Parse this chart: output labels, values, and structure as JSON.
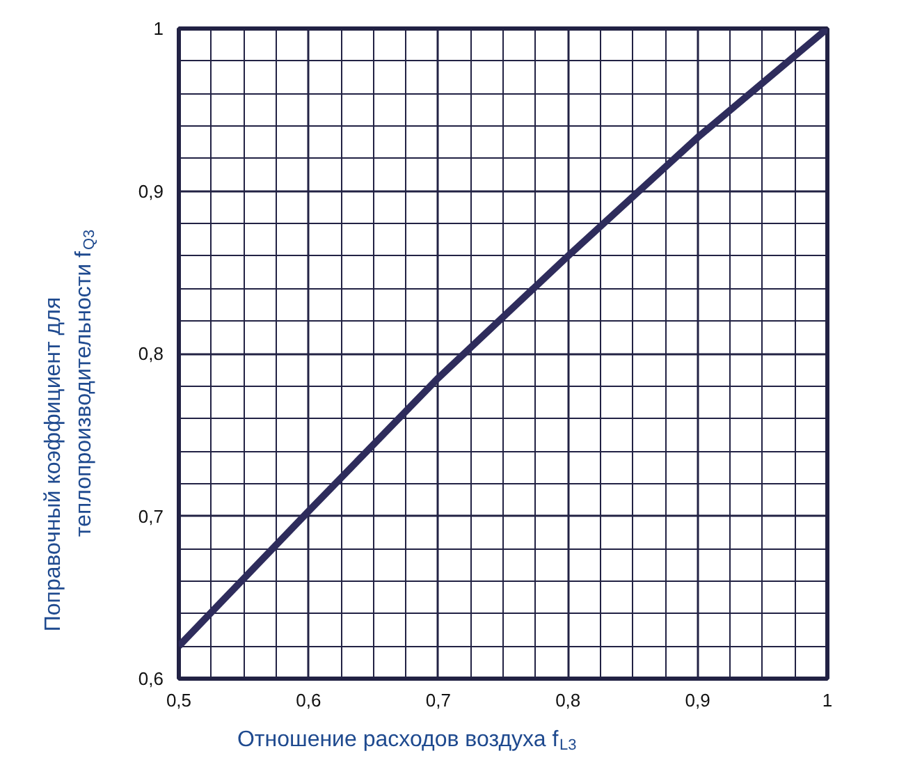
{
  "chart_data": {
    "type": "line",
    "xlabel": "Отношение расходов воздуха f$_{L3}$",
    "ylabel": "Поправочный коэффициент для\nтеплопроизводительности f$_{Q3}$",
    "x": [
      0.5,
      0.6,
      0.7,
      0.8,
      0.9,
      1.0
    ],
    "series": [
      {
        "color": "#2e2c5c",
        "values": [
          0.62,
          0.703,
          0.785,
          0.86,
          0.933,
          1.0
        ]
      }
    ],
    "xlim": [
      0.5,
      1.0
    ],
    "ylim": [
      0.6,
      1.0
    ],
    "xticks": [
      {
        "value": 0.5,
        "label": "0,5"
      },
      {
        "value": 0.6,
        "label": "0,6"
      },
      {
        "value": 0.7,
        "label": "0,7"
      },
      {
        "value": 0.8,
        "label": "0,8"
      },
      {
        "value": 0.9,
        "label": "0,9"
      },
      1
    ],
    "yticks": [
      {
        "value": 0.6,
        "label": "0,6"
      },
      {
        "value": 0.7,
        "label": "0,7"
      },
      {
        "value": 0.8,
        "label": "0,8"
      },
      {
        "value": 0.9,
        "label": "0,9"
      },
      1
    ],
    "grid": true,
    "marker": "none",
    "line_style": "solid"
  }
}
